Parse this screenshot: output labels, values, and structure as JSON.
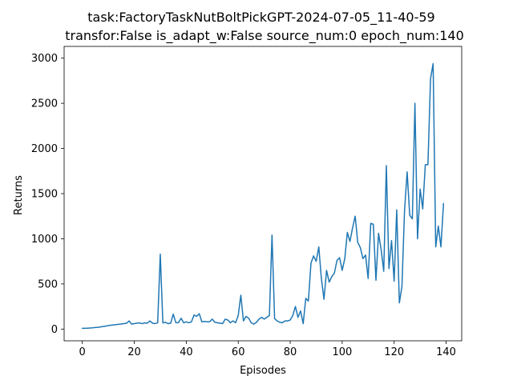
{
  "chart_data": {
    "type": "line",
    "title_lines": [
      "task:FactoryTaskNutBoltPickGPT-2024-07-05_11-40-59",
      "transfor:False  is_adapt_w:False   source_num:0   epoch_num:140"
    ],
    "xlabel": "Episodes",
    "ylabel": "Returns",
    "xlim": [
      -7,
      146
    ],
    "ylim": [
      -130,
      3130
    ],
    "xticks": [
      0,
      20,
      40,
      60,
      80,
      100,
      120,
      140
    ],
    "yticks": [
      0,
      500,
      1000,
      1500,
      2000,
      2500,
      3000
    ],
    "grid": false,
    "color": "#1f77b4",
    "series": [
      {
        "x": [
          0,
          1,
          2,
          3,
          4,
          5,
          6,
          7,
          8,
          9,
          10,
          11,
          12,
          13,
          14,
          15,
          16,
          17,
          18,
          19,
          20,
          21,
          22,
          23,
          24,
          25,
          26,
          27,
          28,
          29,
          30,
          31,
          32,
          33,
          34,
          35,
          36,
          37,
          38,
          39,
          40,
          41,
          42,
          43,
          44,
          45,
          46,
          47,
          48,
          49,
          50,
          51,
          52,
          53,
          54,
          55,
          56,
          57,
          58,
          59,
          60,
          61,
          62,
          63,
          64,
          65,
          66,
          67,
          68,
          69,
          70,
          71,
          72,
          73,
          74,
          75,
          76,
          77,
          78,
          79,
          80,
          81,
          82,
          83,
          84,
          85,
          86,
          87,
          88,
          89,
          90,
          91,
          92,
          93,
          94,
          95,
          96,
          97,
          98,
          99,
          100,
          101,
          102,
          103,
          104,
          105,
          106,
          107,
          108,
          109,
          110,
          111,
          112,
          113,
          114,
          115,
          116,
          117,
          118,
          119,
          120,
          121,
          122,
          123,
          124,
          125,
          126,
          127,
          128,
          129,
          130,
          131,
          132,
          133,
          134,
          135,
          136,
          137,
          138,
          139
        ],
        "values": [
          8,
          8,
          10,
          12,
          14,
          17,
          20,
          24,
          28,
          33,
          38,
          43,
          46,
          49,
          53,
          56,
          60,
          64,
          90,
          55,
          60,
          65,
          68,
          60,
          68,
          65,
          90,
          65,
          60,
          70,
          830,
          68,
          75,
          60,
          65,
          165,
          70,
          70,
          120,
          70,
          80,
          70,
          80,
          155,
          140,
          170,
          80,
          85,
          80,
          80,
          110,
          75,
          70,
          65,
          60,
          110,
          100,
          70,
          90,
          70,
          150,
          375,
          90,
          140,
          120,
          70,
          55,
          75,
          110,
          130,
          110,
          130,
          150,
          1040,
          115,
          90,
          75,
          70,
          90,
          90,
          100,
          150,
          250,
          130,
          200,
          60,
          340,
          310,
          730,
          810,
          750,
          910,
          560,
          330,
          650,
          520,
          580,
          620,
          760,
          790,
          650,
          780,
          1070,
          970,
          1120,
          1250,
          960,
          900,
          780,
          820,
          560,
          1170,
          1160,
          540,
          1060,
          880,
          640,
          1810,
          670,
          980,
          530,
          1320,
          290,
          470,
          1310,
          1740,
          1260,
          1220,
          2500,
          1000,
          1550,
          1330,
          1820,
          1820,
          2770,
          2940,
          910,
          1140,
          910,
          1390
        ]
      }
    ]
  }
}
